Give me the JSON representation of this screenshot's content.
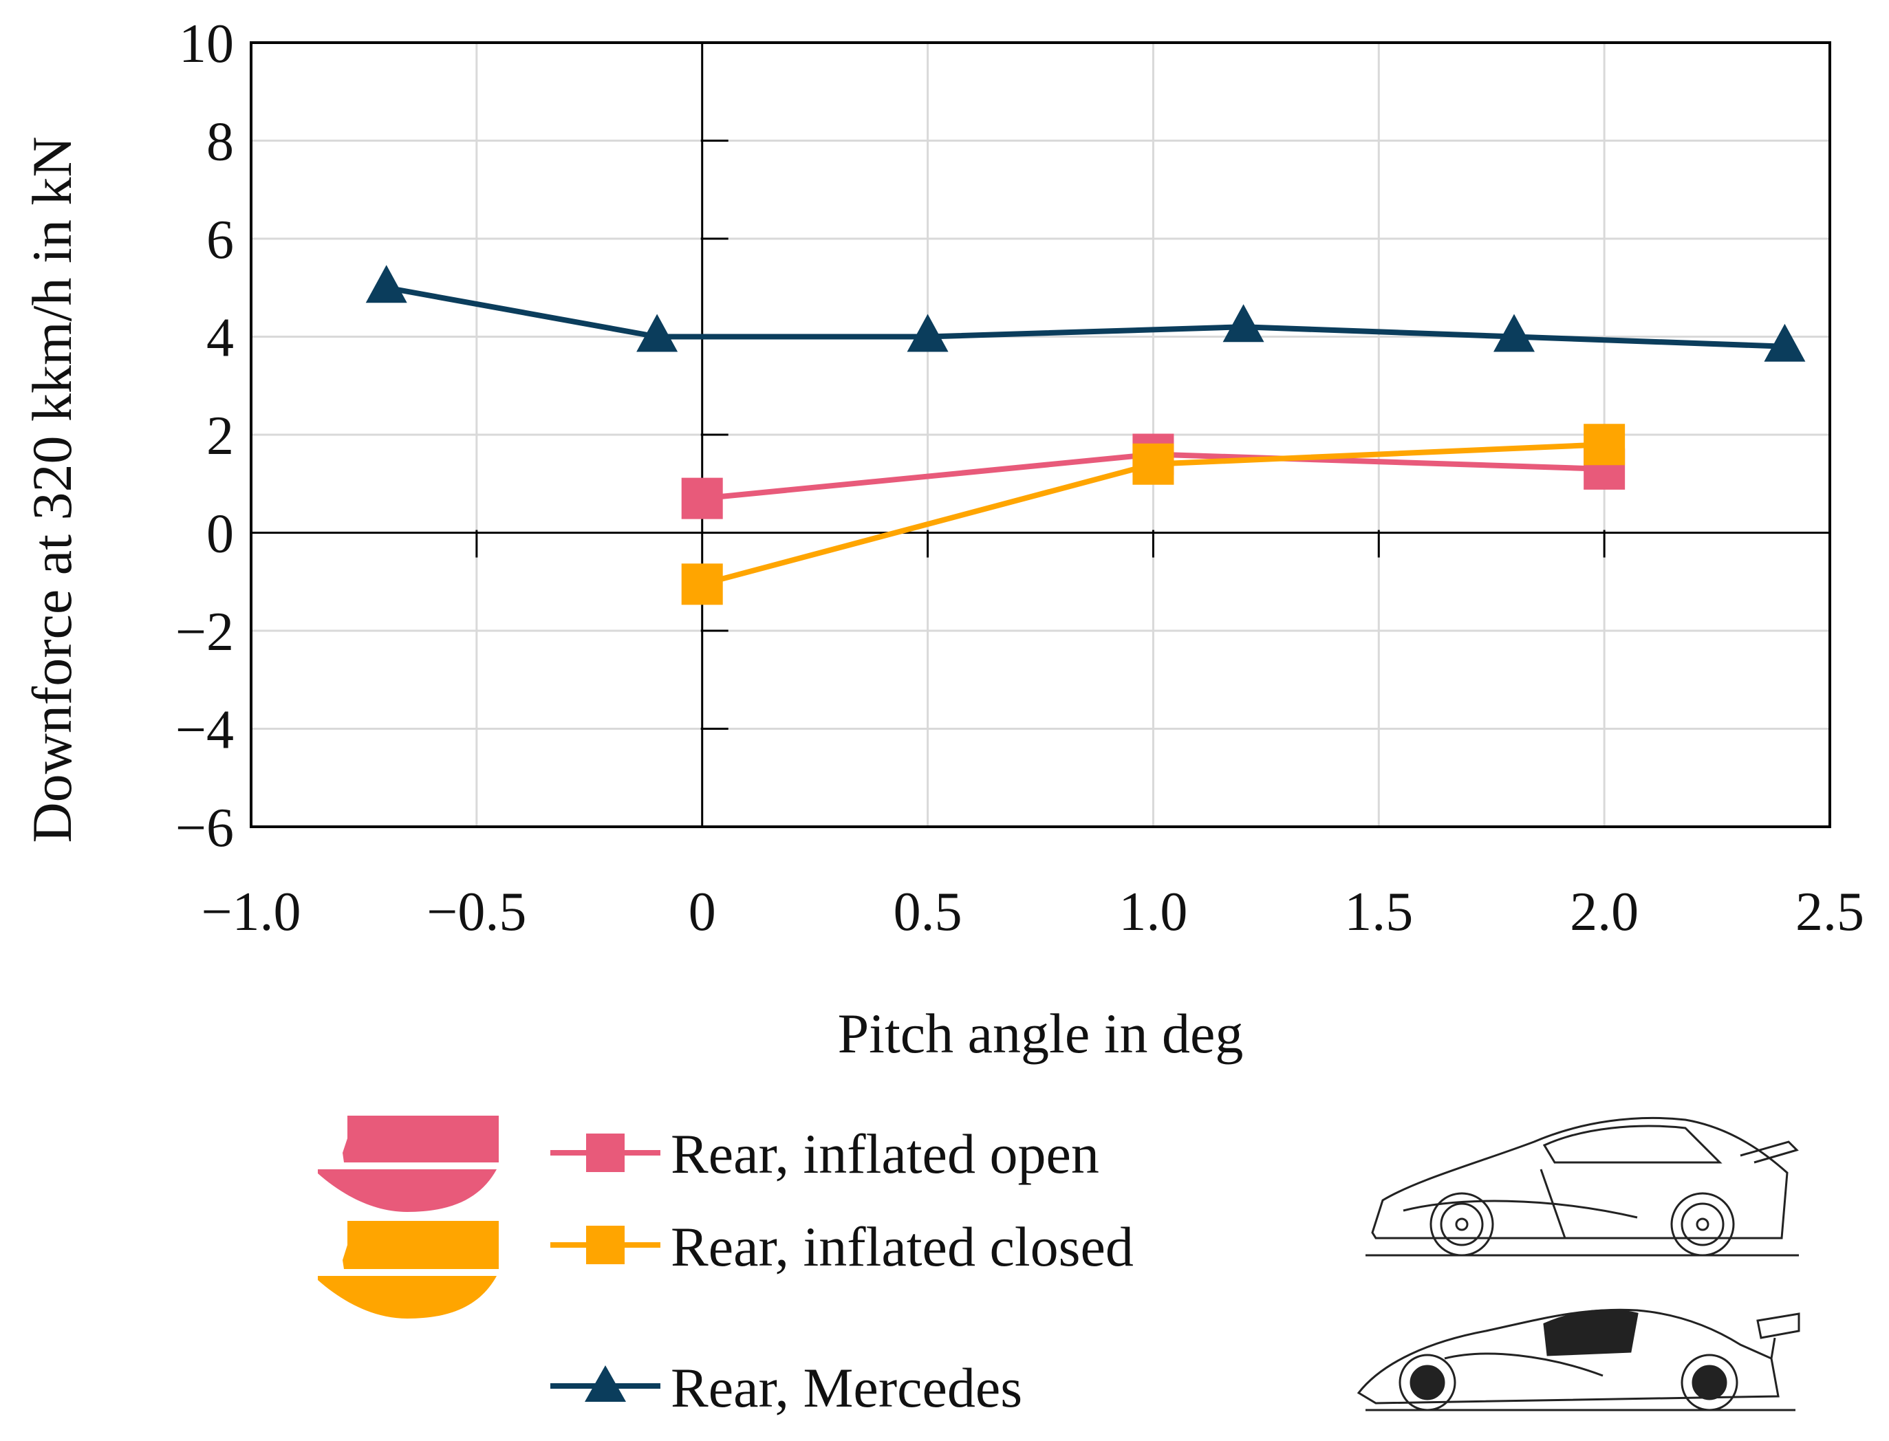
{
  "chart_data": {
    "type": "line",
    "title": "",
    "xlabel": "Pitch angle in deg",
    "ylabel": "Downforce at 320 kkm/h in kN",
    "xlim": [
      -1.0,
      2.5
    ],
    "ylim": [
      -6,
      10
    ],
    "x_ticks": [
      -1.0,
      -0.5,
      0,
      0.5,
      1.0,
      1.5,
      2.0,
      2.5
    ],
    "x_tick_labels": [
      "−1.0",
      "−0.5",
      "0",
      "0.5",
      "1.0",
      "1.5",
      "2.0",
      "2.5"
    ],
    "y_ticks": [
      -6,
      -4,
      -2,
      0,
      2,
      4,
      6,
      8,
      10
    ],
    "y_tick_labels": [
      "−6",
      "−4",
      "−2",
      "0",
      "2",
      "4",
      "6",
      "8",
      "10"
    ],
    "grid": true,
    "legend_position": "bottom",
    "series": [
      {
        "name": "Rear, inflated open",
        "color": "#e85a7a",
        "marker": "square",
        "x": [
          0,
          1.0,
          2.0
        ],
        "y": [
          0.7,
          1.6,
          1.3
        ]
      },
      {
        "name": "Rear, inflated closed",
        "color": "#ffa500",
        "marker": "square",
        "x": [
          0,
          1.0,
          2.0
        ],
        "y": [
          -1.05,
          1.4,
          1.8
        ]
      },
      {
        "name": "Rear, Mercedes",
        "color": "#0b3d5c",
        "marker": "triangle",
        "x": [
          -0.7,
          -0.1,
          0.5,
          1.2,
          1.8,
          2.4
        ],
        "y": [
          5.0,
          4.0,
          4.0,
          4.2,
          4.0,
          3.8
        ]
      }
    ]
  }
}
